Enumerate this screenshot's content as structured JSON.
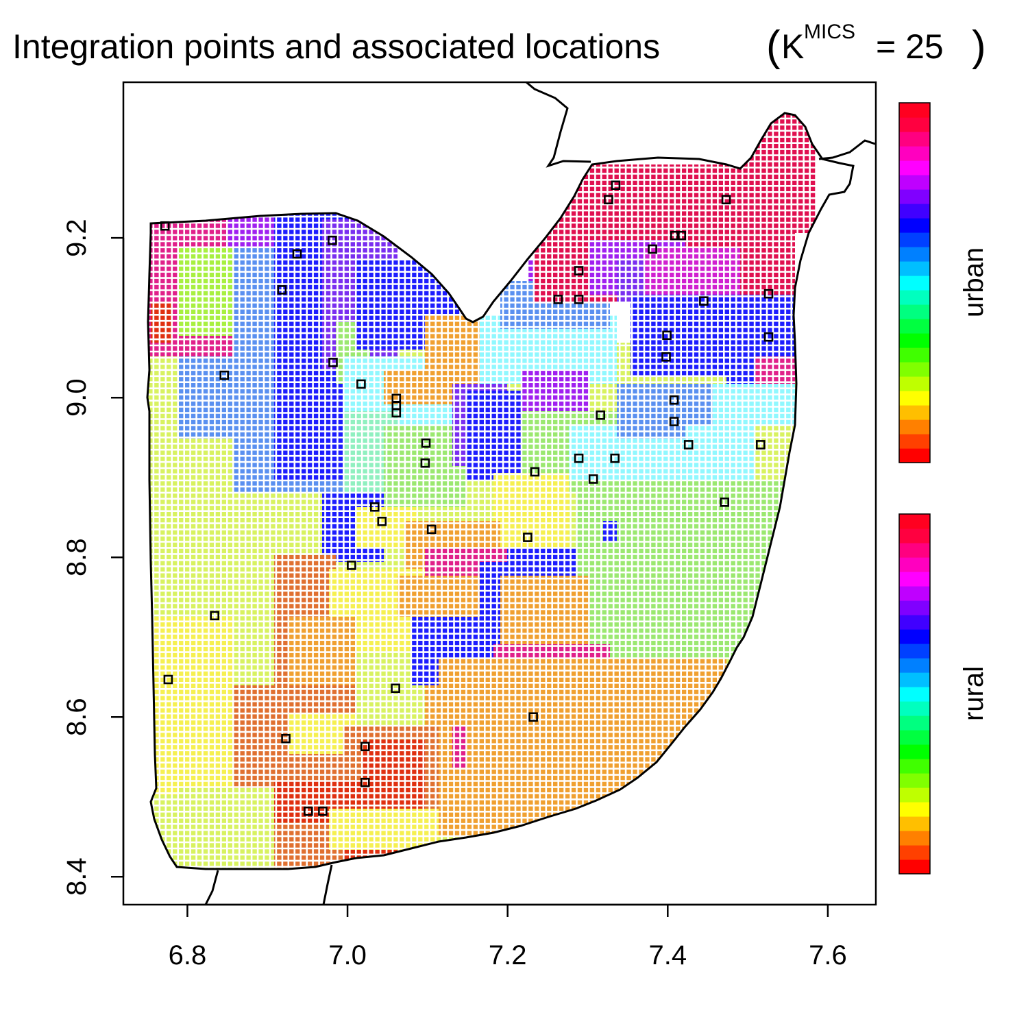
{
  "chart_data": {
    "type": "scatter",
    "title": {
      "main": "Integration points and associated locations",
      "open_paren": "(",
      "k_symbol": "K",
      "superscript": "MICS",
      "equals_value": " = 25",
      "close_paren": ")"
    },
    "xlabel": "",
    "ylabel": "",
    "xlim": [
      6.72,
      7.66
    ],
    "ylim": [
      8.365,
      9.395
    ],
    "x_ticks": [
      {
        "value": 6.8,
        "label": "6.8"
      },
      {
        "value": 7.0,
        "label": "7.0"
      },
      {
        "value": 7.2,
        "label": "7.2"
      },
      {
        "value": 7.4,
        "label": "7.4"
      },
      {
        "value": 7.6,
        "label": "7.6"
      }
    ],
    "y_ticks": [
      {
        "value": 8.4,
        "label": "8.4"
      },
      {
        "value": 8.6,
        "label": "8.6"
      },
      {
        "value": 8.8,
        "label": "8.8"
      },
      {
        "value": 9.0,
        "label": "9.0"
      },
      {
        "value": 9.2,
        "label": "9.2"
      }
    ],
    "grid": false,
    "legend": {
      "placement": "right",
      "colorbars": [
        {
          "label": "urban"
        },
        {
          "label": "rural"
        }
      ]
    },
    "colorbar_colors": [
      "#ff0000",
      "#ff4000",
      "#ff8000",
      "#ffbf00",
      "#ffff00",
      "#bfff00",
      "#80ff00",
      "#40ff00",
      "#00ff00",
      "#00ff40",
      "#00ff80",
      "#00ffbf",
      "#00ffff",
      "#00bfff",
      "#0080ff",
      "#0040ff",
      "#0000ff",
      "#4000ff",
      "#8000ff",
      "#bf00ff",
      "#ff00ff",
      "#ff00bf",
      "#ff0080",
      "#ff0040",
      "#ff0020"
    ],
    "integration_points": [
      {
        "x": 6.772,
        "y": 9.215
      },
      {
        "x": 6.937,
        "y": 9.18
      },
      {
        "x": 6.981,
        "y": 9.197
      },
      {
        "x": 6.918,
        "y": 9.135
      },
      {
        "x": 6.846,
        "y": 9.028
      },
      {
        "x": 6.982,
        "y": 9.044
      },
      {
        "x": 7.017,
        "y": 9.017
      },
      {
        "x": 7.061,
        "y": 8.999
      },
      {
        "x": 7.061,
        "y": 8.99
      },
      {
        "x": 7.061,
        "y": 8.981
      },
      {
        "x": 7.098,
        "y": 8.943
      },
      {
        "x": 7.097,
        "y": 8.918
      },
      {
        "x": 7.034,
        "y": 8.863
      },
      {
        "x": 7.043,
        "y": 8.845
      },
      {
        "x": 7.105,
        "y": 8.835
      },
      {
        "x": 7.005,
        "y": 8.79
      },
      {
        "x": 6.834,
        "y": 8.727
      },
      {
        "x": 6.776,
        "y": 8.647
      },
      {
        "x": 7.06,
        "y": 8.636
      },
      {
        "x": 6.923,
        "y": 8.573
      },
      {
        "x": 7.022,
        "y": 8.563
      },
      {
        "x": 7.022,
        "y": 8.518
      },
      {
        "x": 6.951,
        "y": 8.482
      },
      {
        "x": 6.969,
        "y": 8.482
      },
      {
        "x": 7.232,
        "y": 8.6
      },
      {
        "x": 7.225,
        "y": 8.825
      },
      {
        "x": 7.234,
        "y": 8.907
      },
      {
        "x": 7.289,
        "y": 8.924
      },
      {
        "x": 7.307,
        "y": 8.898
      },
      {
        "x": 7.334,
        "y": 8.924
      },
      {
        "x": 7.316,
        "y": 8.978
      },
      {
        "x": 7.263,
        "y": 9.123
      },
      {
        "x": 7.289,
        "y": 9.123
      },
      {
        "x": 7.289,
        "y": 9.159
      },
      {
        "x": 7.335,
        "y": 9.266
      },
      {
        "x": 7.326,
        "y": 9.248
      },
      {
        "x": 7.473,
        "y": 9.248
      },
      {
        "x": 7.381,
        "y": 9.186
      },
      {
        "x": 7.409,
        "y": 9.203
      },
      {
        "x": 7.417,
        "y": 9.203
      },
      {
        "x": 7.445,
        "y": 9.121
      },
      {
        "x": 7.526,
        "y": 9.13
      },
      {
        "x": 7.526,
        "y": 9.076
      },
      {
        "x": 7.399,
        "y": 9.078
      },
      {
        "x": 7.398,
        "y": 9.051
      },
      {
        "x": 7.408,
        "y": 8.997
      },
      {
        "x": 7.408,
        "y": 8.97
      },
      {
        "x": 7.426,
        "y": 8.941
      },
      {
        "x": 7.516,
        "y": 8.941
      },
      {
        "x": 7.471,
        "y": 8.869
      }
    ]
  }
}
